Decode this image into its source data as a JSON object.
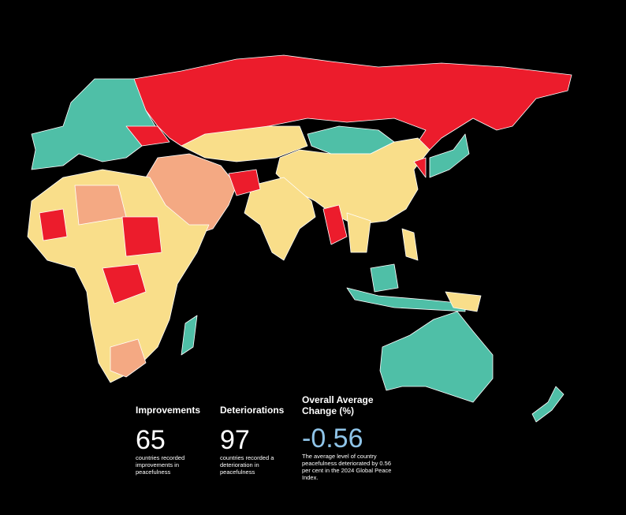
{
  "stats": [
    {
      "title": "Improvements",
      "value": 65,
      "description": "countries recorded improvements in peacefulness"
    },
    {
      "title": "Deteriorations",
      "value": 97,
      "description": "countries recorded a deterioration in peacefulness"
    },
    {
      "title": "Overall Average Change (%)",
      "value": -0.56,
      "description": "The average level of country peacefulness deteriorated by 0.56 per cent in the 2024 Global Peace Index."
    }
  ]
}
